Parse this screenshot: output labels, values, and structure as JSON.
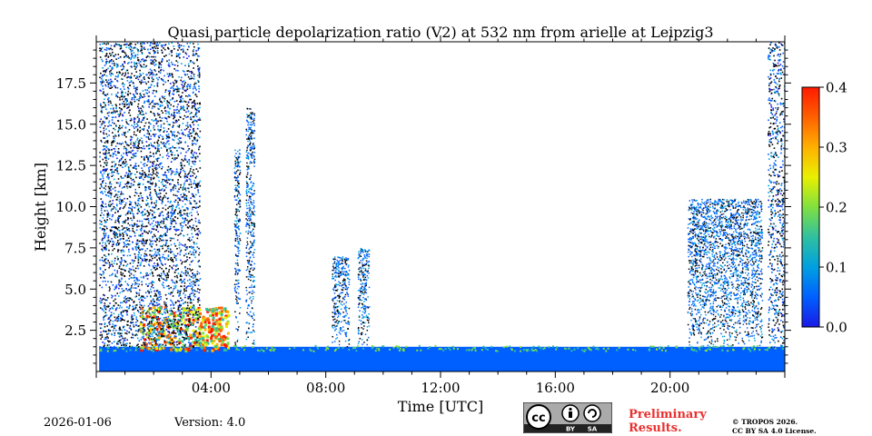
{
  "chart_data": {
    "type": "heatmap",
    "title": "Quasi particle depolarization ratio (V2) at 532 nm from arielle at Leipzig3",
    "xlabel": "Time [UTC]",
    "ylabel": "Height [km]",
    "xlim_hours": [
      0,
      24
    ],
    "ylim_km": [
      0,
      20
    ],
    "x_ticks": [
      {
        "hour": 4,
        "label": "04:00"
      },
      {
        "hour": 8,
        "label": "08:00"
      },
      {
        "hour": 12,
        "label": "12:00"
      },
      {
        "hour": 16,
        "label": "16:00"
      },
      {
        "hour": 20,
        "label": "20:00"
      }
    ],
    "y_ticks": [
      {
        "value": 2.5,
        "label": "2.5"
      },
      {
        "value": 5.0,
        "label": "5.0"
      },
      {
        "value": 7.5,
        "label": "7.5"
      },
      {
        "value": 10.0,
        "label": "10.0"
      },
      {
        "value": 12.5,
        "label": "12.5"
      },
      {
        "value": 15.0,
        "label": "15.0"
      },
      {
        "value": 17.5,
        "label": "17.5"
      }
    ],
    "colorbar": {
      "min": 0.0,
      "max": 0.4,
      "ticks": [
        {
          "value": 0.0,
          "label": "0.0"
        },
        {
          "value": 0.1,
          "label": "0.1"
        },
        {
          "value": 0.2,
          "label": "0.2"
        },
        {
          "value": 0.3,
          "label": "0.3"
        },
        {
          "value": 0.4,
          "label": "0.4"
        }
      ],
      "colormap": [
        "#1a1ae6",
        "#0060ff",
        "#00a0e0",
        "#30c0a0",
        "#80e040",
        "#e8f000",
        "#ffb000",
        "#ff6000",
        "#ff1a00"
      ]
    },
    "features": [
      {
        "name": "boundary layer aerosol",
        "t_start": 0.1,
        "t_end": 24,
        "h_base": 0.0,
        "h_top": 1.5,
        "value": 0.04
      },
      {
        "name": "depolarizing layer",
        "t_start": 1.5,
        "t_end": 4.6,
        "h_base": 1.3,
        "h_top": 4.0,
        "value": 0.33
      },
      {
        "name": "noisy night signal",
        "t_start": 0.1,
        "t_end": 3.6,
        "h_base": 1.5,
        "h_top": 20.0,
        "value": 0.05
      },
      {
        "name": "noisy night signal",
        "t_start": 23.4,
        "t_end": 24,
        "h_base": 1.5,
        "h_top": 20.0,
        "value": 0.05
      },
      {
        "name": "cloud column",
        "t_start": 4.8,
        "t_end": 5.0,
        "h_base": 1.5,
        "h_top": 13.5,
        "value": 0.06
      },
      {
        "name": "cloud column",
        "t_start": 5.2,
        "t_end": 5.5,
        "h_base": 1.5,
        "h_top": 16.0,
        "value": 0.07
      },
      {
        "name": "cloud column",
        "t_start": 8.2,
        "t_end": 8.8,
        "h_base": 1.5,
        "h_top": 7.0,
        "value": 0.05
      },
      {
        "name": "cloud column",
        "t_start": 9.1,
        "t_end": 9.5,
        "h_base": 1.5,
        "h_top": 7.5,
        "value": 0.05
      },
      {
        "name": "cloud column",
        "t_start": 20.6,
        "t_end": 23.2,
        "h_base": 1.5,
        "h_top": 10.5,
        "value": 0.04
      }
    ]
  },
  "footer": {
    "date": "2026-01-06",
    "version": "Version: 4.0",
    "preliminary_line1": "Preliminary",
    "preliminary_line2": "Results.",
    "copyright_line1": "© TROPOS 2026.",
    "copyright_line2": "CC BY SA 4.0 License.",
    "license_badge": {
      "cc": "cc",
      "by": "BY",
      "sa": "SA"
    }
  },
  "colors": {
    "preliminary": "#e8302e",
    "badge_bg": "#aaaaaa",
    "badge_dark": "#222222"
  }
}
